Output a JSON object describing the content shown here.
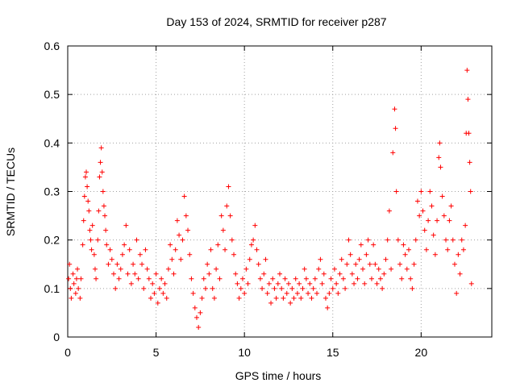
{
  "chart_data": {
    "type": "scatter",
    "title": "Day 153 of 2024, SRMTID for receiver p287",
    "xlabel": "GPS time / hours",
    "ylabel": "SRMTID / TECUs",
    "xlim": [
      0,
      24
    ],
    "ylim": [
      0,
      0.6
    ],
    "xticks": [
      0,
      5,
      10,
      15,
      20
    ],
    "xtick_labels": [
      "0",
      "5",
      "10",
      "15",
      "20"
    ],
    "yticks": [
      0,
      0.1,
      0.2,
      0.3,
      0.4,
      0.5,
      0.6
    ],
    "ytick_labels": [
      "0",
      "0.1",
      "0.2",
      "0.3",
      "0.4",
      "0.5",
      "0.6"
    ],
    "grid": true,
    "marker": "+",
    "color": "#ff0000",
    "series": [
      {
        "name": "SRMTID",
        "points": [
          [
            0.05,
            0.12
          ],
          [
            0.1,
            0.15
          ],
          [
            0.15,
            0.1
          ],
          [
            0.2,
            0.08
          ],
          [
            0.3,
            0.13
          ],
          [
            0.35,
            0.11
          ],
          [
            0.45,
            0.09
          ],
          [
            0.5,
            0.12
          ],
          [
            0.55,
            0.14
          ],
          [
            0.6,
            0.1
          ],
          [
            0.7,
            0.08
          ],
          [
            0.75,
            0.12
          ],
          [
            0.85,
            0.19
          ],
          [
            0.9,
            0.24
          ],
          [
            0.95,
            0.29
          ],
          [
            1.0,
            0.33
          ],
          [
            1.05,
            0.34
          ],
          [
            1.1,
            0.31
          ],
          [
            1.15,
            0.28
          ],
          [
            1.2,
            0.26
          ],
          [
            1.25,
            0.22
          ],
          [
            1.3,
            0.2
          ],
          [
            1.35,
            0.18
          ],
          [
            1.4,
            0.23
          ],
          [
            1.5,
            0.17
          ],
          [
            1.55,
            0.14
          ],
          [
            1.6,
            0.12
          ],
          [
            1.7,
            0.2
          ],
          [
            1.75,
            0.26
          ],
          [
            1.8,
            0.33
          ],
          [
            1.85,
            0.36
          ],
          [
            1.9,
            0.39
          ],
          [
            1.95,
            0.34
          ],
          [
            2.0,
            0.3
          ],
          [
            2.05,
            0.27
          ],
          [
            2.1,
            0.25
          ],
          [
            2.15,
            0.22
          ],
          [
            2.2,
            0.19
          ],
          [
            2.3,
            0.15
          ],
          [
            2.4,
            0.18
          ],
          [
            2.5,
            0.16
          ],
          [
            2.6,
            0.13
          ],
          [
            2.7,
            0.1
          ],
          [
            2.8,
            0.15
          ],
          [
            2.9,
            0.12
          ],
          [
            3.0,
            0.14
          ],
          [
            3.1,
            0.17
          ],
          [
            3.2,
            0.19
          ],
          [
            3.3,
            0.23
          ],
          [
            3.4,
            0.13
          ],
          [
            3.5,
            0.18
          ],
          [
            3.6,
            0.11
          ],
          [
            3.7,
            0.15
          ],
          [
            3.8,
            0.13
          ],
          [
            3.9,
            0.2
          ],
          [
            4.0,
            0.12
          ],
          [
            4.1,
            0.17
          ],
          [
            4.2,
            0.15
          ],
          [
            4.3,
            0.1
          ],
          [
            4.4,
            0.18
          ],
          [
            4.5,
            0.14
          ],
          [
            4.6,
            0.12
          ],
          [
            4.7,
            0.08
          ],
          [
            4.8,
            0.11
          ],
          [
            4.9,
            0.09
          ],
          [
            5.0,
            0.13
          ],
          [
            5.1,
            0.07
          ],
          [
            5.2,
            0.1
          ],
          [
            5.3,
            0.12
          ],
          [
            5.4,
            0.09
          ],
          [
            5.5,
            0.11
          ],
          [
            5.6,
            0.08
          ],
          [
            5.7,
            0.14
          ],
          [
            5.8,
            0.19
          ],
          [
            5.9,
            0.16
          ],
          [
            6.0,
            0.13
          ],
          [
            6.1,
            0.18
          ],
          [
            6.2,
            0.24
          ],
          [
            6.3,
            0.21
          ],
          [
            6.4,
            0.16
          ],
          [
            6.5,
            0.2
          ],
          [
            6.6,
            0.29
          ],
          [
            6.7,
            0.25
          ],
          [
            6.8,
            0.22
          ],
          [
            6.9,
            0.17
          ],
          [
            7.0,
            0.12
          ],
          [
            7.1,
            0.09
          ],
          [
            7.2,
            0.06
          ],
          [
            7.3,
            0.04
          ],
          [
            7.4,
            0.02
          ],
          [
            7.5,
            0.05
          ],
          [
            7.6,
            0.08
          ],
          [
            7.7,
            0.12
          ],
          [
            7.8,
            0.1
          ],
          [
            7.9,
            0.15
          ],
          [
            8.0,
            0.13
          ],
          [
            8.1,
            0.18
          ],
          [
            8.2,
            0.1
          ],
          [
            8.3,
            0.08
          ],
          [
            8.4,
            0.14
          ],
          [
            8.5,
            0.19
          ],
          [
            8.6,
            0.12
          ],
          [
            8.7,
            0.25
          ],
          [
            8.8,
            0.22
          ],
          [
            8.9,
            0.18
          ],
          [
            9.0,
            0.27
          ],
          [
            9.1,
            0.31
          ],
          [
            9.2,
            0.25
          ],
          [
            9.3,
            0.2
          ],
          [
            9.4,
            0.17
          ],
          [
            9.5,
            0.13
          ],
          [
            9.6,
            0.11
          ],
          [
            9.7,
            0.08
          ],
          [
            9.8,
            0.1
          ],
          [
            9.9,
            0.12
          ],
          [
            10.0,
            0.09
          ],
          [
            10.1,
            0.14
          ],
          [
            10.2,
            0.11
          ],
          [
            10.3,
            0.16
          ],
          [
            10.4,
            0.19
          ],
          [
            10.5,
            0.2
          ],
          [
            10.6,
            0.23
          ],
          [
            10.7,
            0.18
          ],
          [
            10.8,
            0.15
          ],
          [
            10.9,
            0.12
          ],
          [
            11.0,
            0.1
          ],
          [
            11.1,
            0.13
          ],
          [
            11.2,
            0.16
          ],
          [
            11.3,
            0.09
          ],
          [
            11.4,
            0.11
          ],
          [
            11.5,
            0.07
          ],
          [
            11.6,
            0.12
          ],
          [
            11.7,
            0.1
          ],
          [
            11.8,
            0.08
          ],
          [
            11.9,
            0.11
          ],
          [
            12.0,
            0.13
          ],
          [
            12.1,
            0.1
          ],
          [
            12.2,
            0.08
          ],
          [
            12.3,
            0.12
          ],
          [
            12.4,
            0.09
          ],
          [
            12.5,
            0.11
          ],
          [
            12.6,
            0.07
          ],
          [
            12.7,
            0.1
          ],
          [
            12.8,
            0.08
          ],
          [
            12.9,
            0.12
          ],
          [
            13.0,
            0.09
          ],
          [
            13.1,
            0.11
          ],
          [
            13.2,
            0.08
          ],
          [
            13.3,
            0.1
          ],
          [
            13.4,
            0.14
          ],
          [
            13.5,
            0.12
          ],
          [
            13.6,
            0.09
          ],
          [
            13.7,
            0.11
          ],
          [
            13.8,
            0.08
          ],
          [
            13.9,
            0.1
          ],
          [
            14.0,
            0.12
          ],
          [
            14.1,
            0.09
          ],
          [
            14.2,
            0.14
          ],
          [
            14.3,
            0.16
          ],
          [
            14.4,
            0.11
          ],
          [
            14.5,
            0.13
          ],
          [
            14.6,
            0.08
          ],
          [
            14.7,
            0.06
          ],
          [
            14.8,
            0.09
          ],
          [
            14.9,
            0.12
          ],
          [
            15.0,
            0.1
          ],
          [
            15.1,
            0.14
          ],
          [
            15.2,
            0.11
          ],
          [
            15.3,
            0.09
          ],
          [
            15.4,
            0.13
          ],
          [
            15.5,
            0.16
          ],
          [
            15.6,
            0.12
          ],
          [
            15.7,
            0.1
          ],
          [
            15.8,
            0.15
          ],
          [
            15.9,
            0.2
          ],
          [
            16.0,
            0.17
          ],
          [
            16.1,
            0.13
          ],
          [
            16.2,
            0.11
          ],
          [
            16.3,
            0.15
          ],
          [
            16.4,
            0.12
          ],
          [
            16.5,
            0.16
          ],
          [
            16.6,
            0.19
          ],
          [
            16.7,
            0.14
          ],
          [
            16.8,
            0.11
          ],
          [
            16.9,
            0.17
          ],
          [
            17.0,
            0.2
          ],
          [
            17.1,
            0.15
          ],
          [
            17.2,
            0.12
          ],
          [
            17.3,
            0.19
          ],
          [
            17.4,
            0.15
          ],
          [
            17.5,
            0.11
          ],
          [
            17.6,
            0.14
          ],
          [
            17.7,
            0.12
          ],
          [
            17.8,
            0.1
          ],
          [
            17.9,
            0.13
          ],
          [
            18.0,
            0.16
          ],
          [
            18.1,
            0.2
          ],
          [
            18.2,
            0.26
          ],
          [
            18.3,
            0.14
          ],
          [
            18.4,
            0.38
          ],
          [
            18.5,
            0.47
          ],
          [
            18.55,
            0.43
          ],
          [
            18.6,
            0.3
          ],
          [
            18.7,
            0.2
          ],
          [
            18.8,
            0.15
          ],
          [
            18.9,
            0.12
          ],
          [
            19.0,
            0.19
          ],
          [
            19.1,
            0.17
          ],
          [
            19.2,
            0.14
          ],
          [
            19.3,
            0.18
          ],
          [
            19.4,
            0.12
          ],
          [
            19.5,
            0.1
          ],
          [
            19.6,
            0.15
          ],
          [
            19.7,
            0.2
          ],
          [
            19.8,
            0.28
          ],
          [
            19.9,
            0.25
          ],
          [
            20.0,
            0.3
          ],
          [
            20.1,
            0.26
          ],
          [
            20.2,
            0.22
          ],
          [
            20.3,
            0.18
          ],
          [
            20.4,
            0.24
          ],
          [
            20.5,
            0.3
          ],
          [
            20.6,
            0.27
          ],
          [
            20.7,
            0.21
          ],
          [
            20.8,
            0.17
          ],
          [
            20.9,
            0.24
          ],
          [
            21.0,
            0.37
          ],
          [
            21.05,
            0.4
          ],
          [
            21.1,
            0.35
          ],
          [
            21.2,
            0.29
          ],
          [
            21.3,
            0.25
          ],
          [
            21.4,
            0.2
          ],
          [
            21.5,
            0.18
          ],
          [
            21.6,
            0.24
          ],
          [
            21.7,
            0.27
          ],
          [
            21.8,
            0.2
          ],
          [
            21.9,
            0.15
          ],
          [
            22.0,
            0.09
          ],
          [
            22.1,
            0.17
          ],
          [
            22.2,
            0.13
          ],
          [
            22.3,
            0.2
          ],
          [
            22.4,
            0.18
          ],
          [
            22.5,
            0.23
          ],
          [
            22.55,
            0.42
          ],
          [
            22.6,
            0.55
          ],
          [
            22.65,
            0.49
          ],
          [
            22.7,
            0.42
          ],
          [
            22.75,
            0.36
          ],
          [
            22.8,
            0.3
          ],
          [
            22.85,
            0.11
          ]
        ]
      }
    ]
  }
}
